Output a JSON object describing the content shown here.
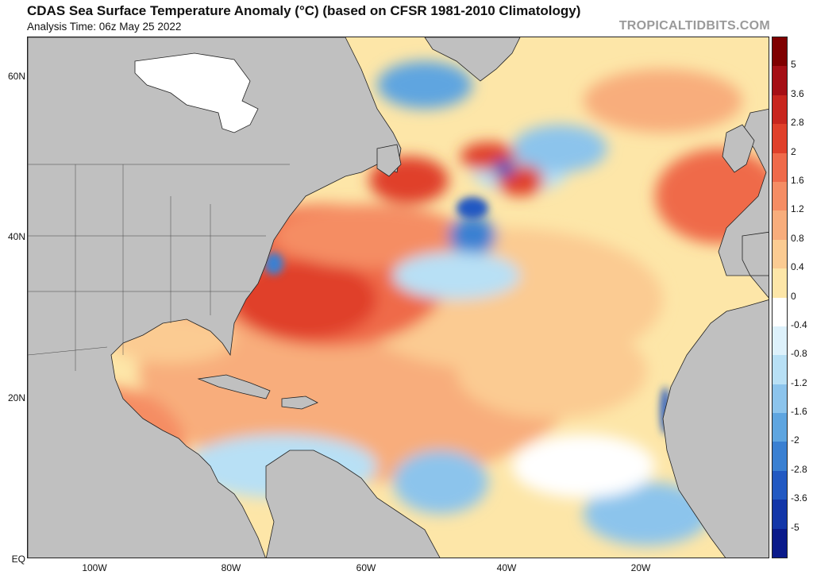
{
  "header": {
    "title": "CDAS Sea Surface Temperature Anomaly (°C) (based on CFSR 1981-2010 Climatology)",
    "subtitle": "Analysis Time: 06z May 25 2022",
    "watermark": "TROPICALTIDBITS.COM"
  },
  "map": {
    "lat_labels": [
      "60N",
      "40N",
      "20N",
      "EQ"
    ],
    "lon_labels": [
      "100W",
      "80W",
      "60W",
      "40W",
      "20W"
    ],
    "land_color": "#c0c0c0",
    "ice_color": "#ffffff"
  },
  "colorbar": {
    "labels": [
      "5",
      "3.6",
      "2.8",
      "2",
      "1.6",
      "1.2",
      "0.8",
      "0.4",
      "0",
      "-0.4",
      "-0.8",
      "-1.2",
      "-1.6",
      "-2",
      "-2.8",
      "-3.6",
      "-5"
    ],
    "colors": [
      "#7f0000",
      "#a50f15",
      "#c8261e",
      "#e0402a",
      "#ef6a4a",
      "#f58d64",
      "#f8ad7c",
      "#fbcb92",
      "#fde6a8",
      "#ffffff",
      "#ddf1fb",
      "#b8e0f5",
      "#8cc4ec",
      "#5ea5e0",
      "#3a80d2",
      "#2259c2",
      "#1336a8",
      "#0a1a8a"
    ]
  }
}
